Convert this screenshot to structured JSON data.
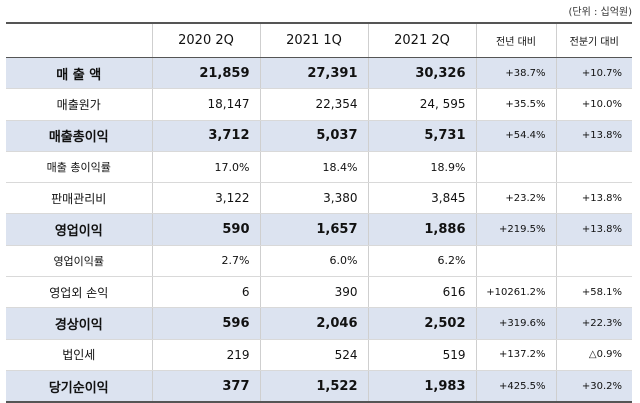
{
  "unit_note": "(단위 : 십억원)",
  "headers": [
    "",
    "2020 2Q",
    "2021 1Q",
    "2021 2Q",
    "전년 대비",
    "전분기 대비"
  ],
  "rows": [
    {
      "label": "매 출 액",
      "v1": "21,859",
      "v2": "27,391",
      "v3": "30,326",
      "yoy": "+38.7%",
      "qoq": "+10.7%"
    },
    {
      "label": "매출원가",
      "v1": "18,147",
      "v2": "22,354",
      "v3": "24, 595",
      "yoy": "+35.5%",
      "qoq": "+10.0%"
    },
    {
      "label": "매출총이익",
      "v1": "3,712",
      "v2": "5,037",
      "v3": "5,731",
      "yoy": "+54.4%",
      "qoq": "+13.8%"
    },
    {
      "label": "매출 총이익률",
      "v1": "17.0%",
      "v2": "18.4%",
      "v3": "18.9%",
      "yoy": "",
      "qoq": ""
    },
    {
      "label": "판매관리비",
      "v1": "3,122",
      "v2": "3,380",
      "v3": "3,845",
      "yoy": "+23.2%",
      "qoq": "+13.8%"
    },
    {
      "label": "영업이익",
      "v1": "590",
      "v2": "1,657",
      "v3": "1,886",
      "yoy": "+219.5%",
      "qoq": "+13.8%"
    },
    {
      "label": "영업이익률",
      "v1": "2.7%",
      "v2": "6.0%",
      "v3": "6.2%",
      "yoy": "",
      "qoq": ""
    },
    {
      "label": "영업외 손익",
      "v1": "6",
      "v2": "390",
      "v3": "616",
      "yoy": "+10261.2%",
      "qoq": "+58.1%"
    },
    {
      "label": "경상이익",
      "v1": "596",
      "v2": "2,046",
      "v3": "2,502",
      "yoy": "+319.6%",
      "qoq": "+22.3%"
    },
    {
      "label": "법인세",
      "v1": "219",
      "v2": "524",
      "v3": "519",
      "yoy": "+137.2%",
      "qoq": "△0.9%"
    },
    {
      "label": "당기순이익",
      "v1": "377",
      "v2": "1,522",
      "v3": "1,983",
      "yoy": "+425.5%",
      "qoq": "+30.2%"
    }
  ],
  "colors": {
    "highlight_row": "#dce3f0",
    "rule": "#555555"
  }
}
